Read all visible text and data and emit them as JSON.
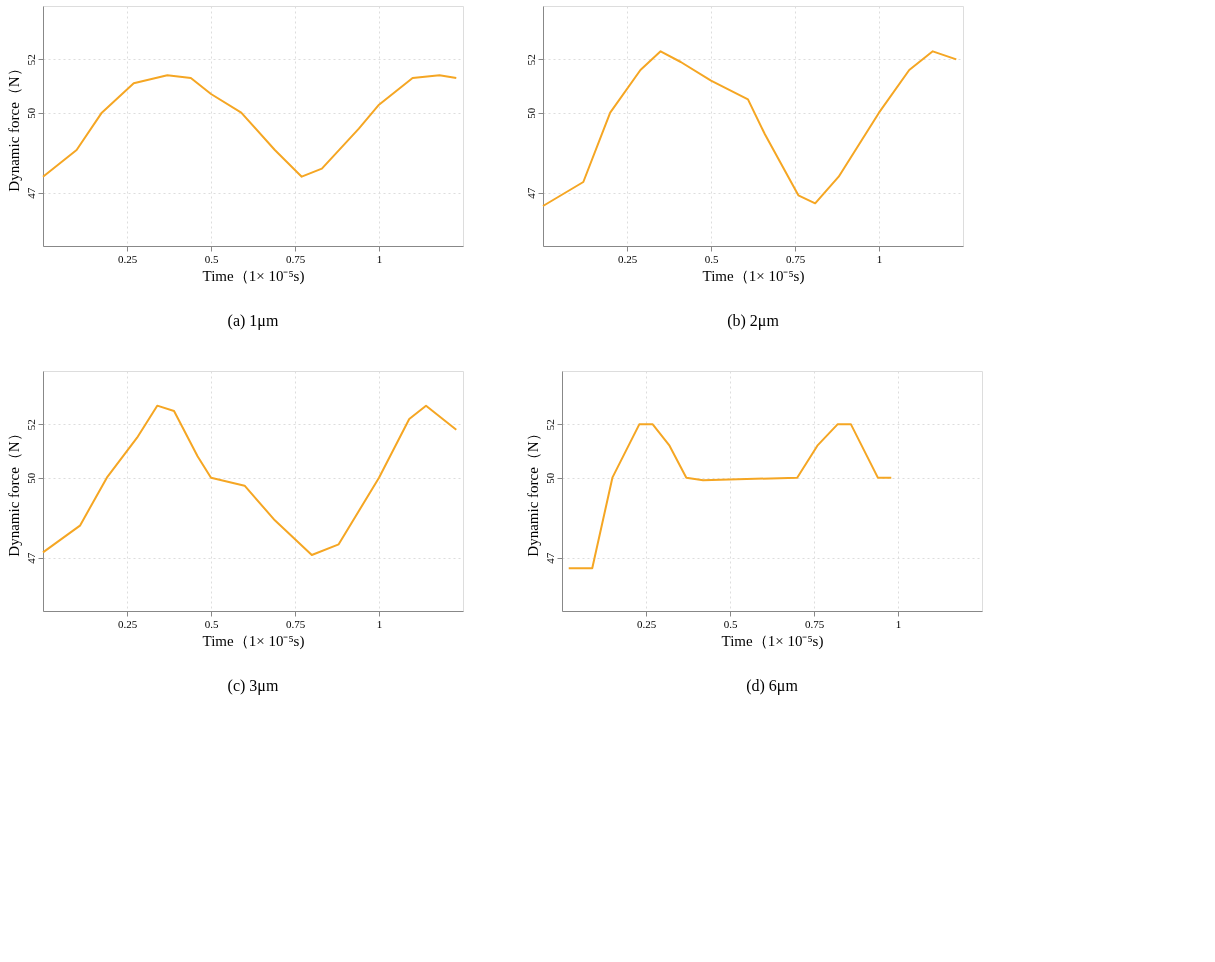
{
  "chart_data": [
    {
      "type": "line",
      "title": "(a)   1μm",
      "xlabel": "Time（1× 10⁻⁵s)",
      "ylabel": "Dynamic force（N）",
      "xlim": [
        0,
        1.25
      ],
      "xticks": [
        0.25,
        0.5,
        0.75,
        1
      ],
      "ylim": [
        45,
        54
      ],
      "yticks": [
        47,
        50,
        52
      ],
      "grid": true,
      "marker": "none",
      "line_style": "solid",
      "x": [
        0,
        0.1,
        0.175,
        0.27,
        0.37,
        0.44,
        0.5,
        0.59,
        0.69,
        0.77,
        0.83,
        0.94,
        1.0,
        1.1,
        1.18,
        1.23
      ],
      "series": [
        {
          "color": "#f5a623",
          "values": [
            47.6,
            48.6,
            50,
            51.1,
            51.4,
            51.3,
            50.7,
            50,
            48.6,
            47.6,
            47.9,
            49.4,
            50.3,
            51.3,
            51.4,
            51.3
          ]
        }
      ]
    },
    {
      "type": "line",
      "title": "(b) 2μm",
      "xlabel": "Time（1× 10⁻⁵s)",
      "xlim": [
        0,
        1.25
      ],
      "xticks": [
        0.25,
        0.5,
        0.75,
        1
      ],
      "ylim": [
        45,
        54
      ],
      "yticks": [
        47,
        50,
        52
      ],
      "grid": true,
      "marker": "none",
      "line_style": "solid",
      "x": [
        0,
        0.12,
        0.2,
        0.29,
        0.35,
        0.41,
        0.5,
        0.61,
        0.66,
        0.76,
        0.81,
        0.88,
        1.0,
        1.09,
        1.16,
        1.23
      ],
      "series": [
        {
          "color": "#f5a623",
          "values": [
            46.5,
            47.4,
            50,
            51.6,
            52.3,
            51.9,
            51.2,
            50.5,
            49.2,
            46.9,
            46.6,
            47.6,
            50,
            51.6,
            52.3,
            52
          ]
        }
      ]
    },
    {
      "type": "line",
      "title": "(c) 3μm",
      "xlabel": "Time（1× 10⁻⁵s)",
      "ylabel": "Dynamic force（N）",
      "xlim": [
        0,
        1.25
      ],
      "xticks": [
        0.25,
        0.5,
        0.75,
        1
      ],
      "ylim": [
        45,
        54
      ],
      "yticks": [
        47,
        50,
        52
      ],
      "grid": true,
      "marker": "none",
      "line_style": "solid",
      "x": [
        0,
        0.11,
        0.19,
        0.28,
        0.34,
        0.39,
        0.46,
        0.5,
        0.6,
        0.69,
        0.8,
        0.88,
        1.0,
        1.09,
        1.14,
        1.23
      ],
      "series": [
        {
          "color": "#f5a623",
          "values": [
            47.2,
            48.2,
            50,
            51.5,
            52.7,
            52.5,
            50.8,
            50,
            49.7,
            48.4,
            47.1,
            47.5,
            50,
            52.2,
            52.7,
            51.8
          ]
        }
      ]
    },
    {
      "type": "line",
      "title": "(d) 6μm",
      "xlabel": "Time（1× 10⁻⁵s)",
      "ylabel": "Dynamic force（N）",
      "xlim": [
        0,
        1.25
      ],
      "xticks": [
        0.25,
        0.5,
        0.75,
        1
      ],
      "ylim": [
        45,
        54
      ],
      "yticks": [
        47,
        50,
        52
      ],
      "grid": true,
      "marker": "none",
      "line_style": "solid",
      "x": [
        0.02,
        0.09,
        0.15,
        0.23,
        0.27,
        0.32,
        0.37,
        0.42,
        0.7,
        0.76,
        0.82,
        0.86,
        0.94,
        0.98
      ],
      "series": [
        {
          "color": "#f5a623",
          "values": [
            46.6,
            46.6,
            50,
            52,
            52,
            51.2,
            50,
            49.9,
            50,
            51.2,
            52,
            52,
            50,
            50
          ]
        }
      ]
    }
  ]
}
